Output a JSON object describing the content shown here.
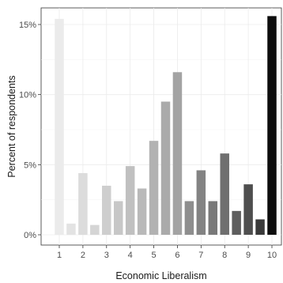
{
  "chart_data": {
    "type": "bar",
    "xlabel": "Economic Liberalism",
    "ylabel": "Percent of respondents",
    "ylim": [
      0,
      16
    ],
    "x_ticks": [
      "1",
      "2",
      "3",
      "4",
      "5",
      "6",
      "7",
      "8",
      "9",
      "10"
    ],
    "y_ticks": [
      {
        "value": 0,
        "label": "0%"
      },
      {
        "value": 5,
        "label": "5%"
      },
      {
        "value": 10,
        "label": "10%"
      },
      {
        "value": 15,
        "label": "15%"
      }
    ],
    "grid": true,
    "legend": "none",
    "values": [
      15.4,
      0.8,
      4.4,
      0.7,
      3.5,
      2.4,
      4.9,
      3.3,
      6.7,
      9.5,
      11.6,
      2.4,
      4.6,
      2.4,
      5.8,
      1.7,
      3.6,
      1.1,
      15.6
    ],
    "x": [
      1,
      1.5,
      2,
      2.5,
      3,
      3.5,
      4,
      4.5,
      5,
      5.5,
      6,
      6.5,
      7,
      7.5,
      8,
      8.5,
      9,
      9.5,
      10
    ],
    "colors": [
      "#ebebeb",
      "#e3e3e3",
      "#dcdcdc",
      "#d5d5d5",
      "#cecece",
      "#c7c7c7",
      "#c0c0c0",
      "#b9b9b9",
      "#b2b2b2",
      "#aaaaaa",
      "#a3a3a3",
      "#8e8e8e",
      "#838383",
      "#797979",
      "#6f6f6f",
      "#5e5e5e",
      "#4e4e4e",
      "#3a3a3a",
      "#0d0d0d"
    ]
  }
}
